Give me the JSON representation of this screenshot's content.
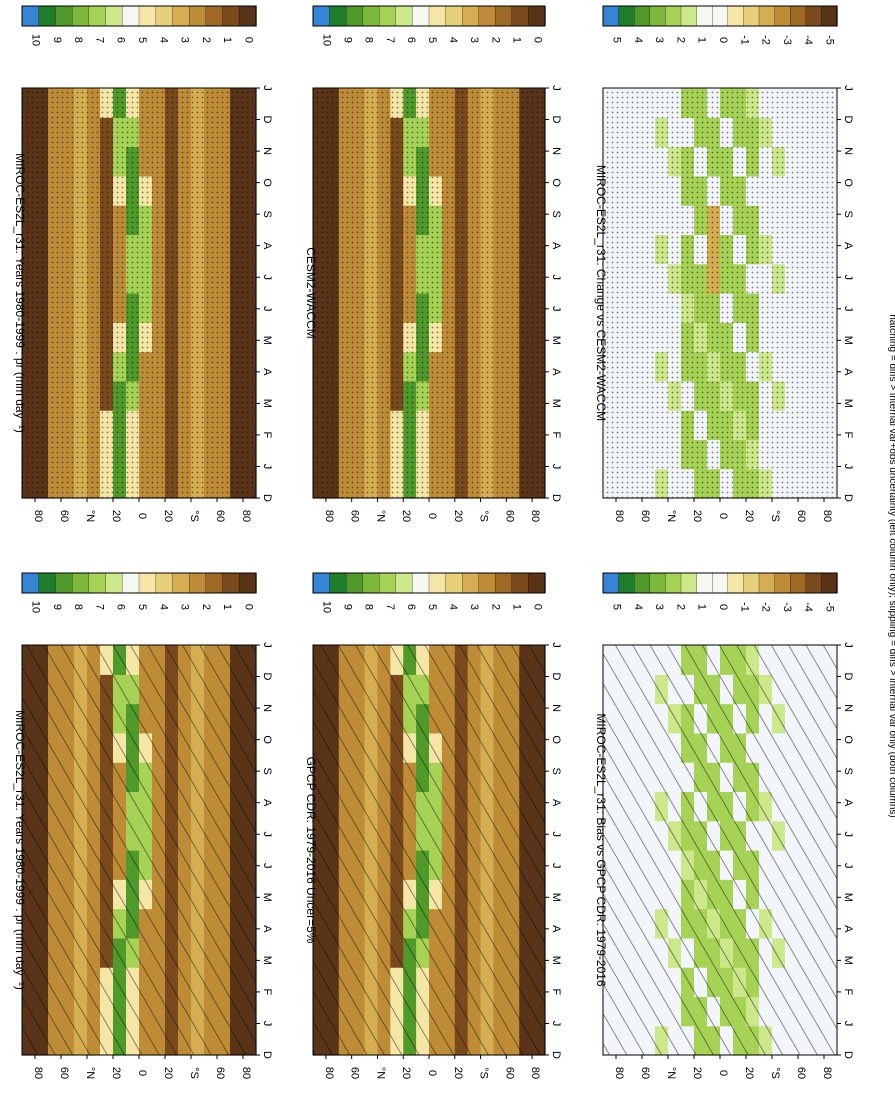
{
  "chart_data": {
    "type": "heatmap",
    "months": [
      "D",
      "J",
      "F",
      "M",
      "A",
      "M",
      "J",
      "J",
      "A",
      "S",
      "O",
      "N",
      "D",
      "J"
    ],
    "lat_ticks": [
      "80",
      "60",
      "°N",
      "20",
      "0",
      "20",
      "°S",
      "60",
      "80"
    ],
    "footnote": "hatching = diffs > internal var+obs uncertainty (left column only); stippling = diffs > internal var only (both columns)",
    "panels": [
      {
        "title": "MIROC-ES2L_r31: Years 1980-1999 : pr (mm day⁻¹)",
        "kind": "clim",
        "mark": "hatch",
        "levels": [
          "10",
          "9",
          "8",
          "7",
          "6",
          "5",
          "4",
          "3",
          "2",
          "1",
          "0"
        ]
      },
      {
        "title": "GPCP CDR: 1979-2016 Uncer=5%",
        "kind": "clim",
        "mark": "hatch",
        "levels": [
          "10",
          "9",
          "8",
          "7",
          "6",
          "5",
          "4",
          "3",
          "2",
          "1",
          "0"
        ]
      },
      {
        "title": "MIROC-ES2L_r31: Bias vs GPCP CDR: 1979-2016",
        "kind": "diff",
        "mark": "hatch",
        "levels": [
          "5",
          "4",
          "3",
          "2",
          "1",
          "0",
          "-1",
          "-2",
          "-3",
          "-4",
          "-5"
        ]
      },
      {
        "title": "MIROC-ES2L_r31: Years 1980-1999 : pr (mm day⁻¹)",
        "kind": "clim",
        "mark": "stipple",
        "levels": [
          "10",
          "9",
          "8",
          "7",
          "6",
          "5",
          "4",
          "3",
          "2",
          "1",
          "0"
        ]
      },
      {
        "title": "CESM2-WACCM",
        "kind": "clim",
        "mark": "stipple",
        "levels": [
          "10",
          "9",
          "8",
          "7",
          "6",
          "5",
          "4",
          "3",
          "2",
          "1",
          "0"
        ]
      },
      {
        "title": "MIROC-ES2L_r31: Change vs CESM2-WACCM",
        "kind": "diff",
        "mark": "stipple",
        "levels": [
          "5",
          "4",
          "3",
          "2",
          "1",
          "0",
          "-1",
          "-2",
          "-3",
          "-4",
          "-5"
        ]
      }
    ],
    "colors": [
      "#3584d6",
      "#1f7e2c",
      "#4f9a2a",
      "#7cb83a",
      "#a6d255",
      "#cde78b",
      "#f7f7f2",
      "#f5e6a6",
      "#e8cf7c",
      "#d6ae52",
      "#be8c36",
      "#9e6a26",
      "#7a4a1c",
      "#5a3418"
    ]
  }
}
